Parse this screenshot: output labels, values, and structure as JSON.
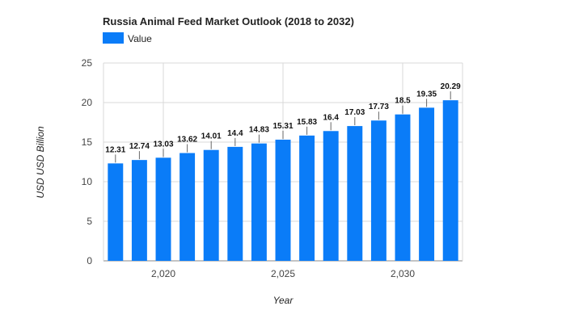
{
  "chart_data": {
    "type": "bar",
    "title": "Russia Animal Feed Market Outlook (2018 to 2032)",
    "xlabel": "Year",
    "ylabel": "USD USD Billion",
    "legend": {
      "entries": [
        "Value"
      ],
      "placement": "top-left"
    },
    "x": [
      2018,
      2019,
      2020,
      2021,
      2022,
      2023,
      2024,
      2025,
      2026,
      2027,
      2028,
      2029,
      2030,
      2031,
      2032
    ],
    "series": [
      {
        "name": "Value",
        "color": "#0a7cf8",
        "values": [
          12.31,
          12.74,
          13.03,
          13.62,
          14.01,
          14.4,
          14.83,
          15.31,
          15.83,
          16.4,
          17.03,
          17.73,
          18.5,
          19.35,
          20.29
        ]
      }
    ],
    "ylim": [
      0,
      25
    ],
    "yticks": [
      "0",
      "5",
      "10",
      "15",
      "20",
      "25"
    ],
    "xtick_values": [
      2020,
      2025,
      2030
    ],
    "xtick_labels": [
      "2,020",
      "2,025",
      "2,030"
    ],
    "grid": true
  }
}
